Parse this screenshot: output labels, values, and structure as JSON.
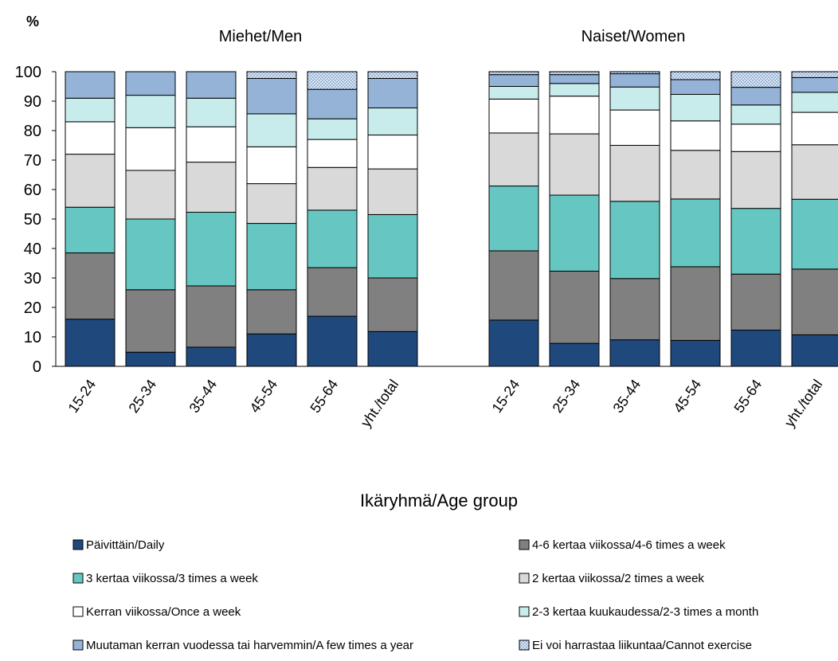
{
  "chart_data": {
    "type": "bar",
    "stacked": true,
    "unit_label": "%",
    "xlabel": "Ikäryhmä/Age group",
    "ylim": [
      0,
      100
    ],
    "yticks": [
      0,
      10,
      20,
      30,
      40,
      50,
      60,
      70,
      80,
      90,
      100
    ],
    "legend_position": "bottom",
    "groups": [
      {
        "title": "Miehet/Men",
        "categories": [
          "15-24",
          "25-34",
          "35-44",
          "45-54",
          "55-64",
          "yht./total"
        ],
        "values": [
          [
            16,
            22.5,
            15.5,
            18,
            11,
            8,
            9,
            0
          ],
          [
            4.8,
            21.2,
            24,
            16.5,
            14.5,
            11,
            8,
            0
          ],
          [
            6.5,
            20.8,
            25,
            17,
            12,
            9.7,
            9,
            0
          ],
          [
            11,
            15,
            22.5,
            13.5,
            12.5,
            11.2,
            12,
            2.3
          ],
          [
            17,
            16.5,
            19.5,
            14.5,
            9.5,
            7,
            10,
            6
          ],
          [
            11.8,
            18.2,
            21.5,
            15.5,
            11.5,
            9.2,
            10,
            2.3
          ]
        ]
      },
      {
        "title": "Naiset/Women",
        "categories": [
          "15-24",
          "25-34",
          "35-44",
          "45-54",
          "55-64",
          "yht./total"
        ],
        "values": [
          [
            15.7,
            23.5,
            22,
            18,
            11.5,
            4.3,
            4,
            1
          ],
          [
            7.8,
            24.5,
            25.8,
            20.8,
            12.8,
            4.3,
            3,
            1
          ],
          [
            9,
            20.8,
            26.2,
            19,
            12,
            7.8,
            4.5,
            0.7
          ],
          [
            8.8,
            25,
            23,
            16.5,
            10,
            9,
            5,
            2.7
          ],
          [
            12.3,
            19,
            22.3,
            19.3,
            9.3,
            6.5,
            6,
            5.3
          ],
          [
            10.7,
            22.3,
            23.7,
            18.5,
            11,
            6.8,
            5,
            2
          ]
        ]
      }
    ],
    "series": [
      {
        "name": "Päivittäin/Daily",
        "color": "#1f497d"
      },
      {
        "name": "4-6 kertaa viikossa/4-6 times a week",
        "color": "#808080"
      },
      {
        "name": "3 kertaa viikossa/3 times a week",
        "color": "#66c7c2"
      },
      {
        "name": "2 kertaa viikossa/2 times a week",
        "color": "#d9d9d9"
      },
      {
        "name": "Kerran viikossa/Once a week",
        "color": "#ffffff"
      },
      {
        "name": "2-3 kertaa kuukaudessa/2-3 times a month",
        "color": "#c8ecec"
      },
      {
        "name": "Muutaman kerran vuodessa tai harvemmin/A few times a year",
        "color": "#95b3d7"
      },
      {
        "name": "Ei voi harrastaa liikuntaa/Cannot exercise",
        "color": "#dbe5f1",
        "pattern": "dots"
      }
    ]
  }
}
